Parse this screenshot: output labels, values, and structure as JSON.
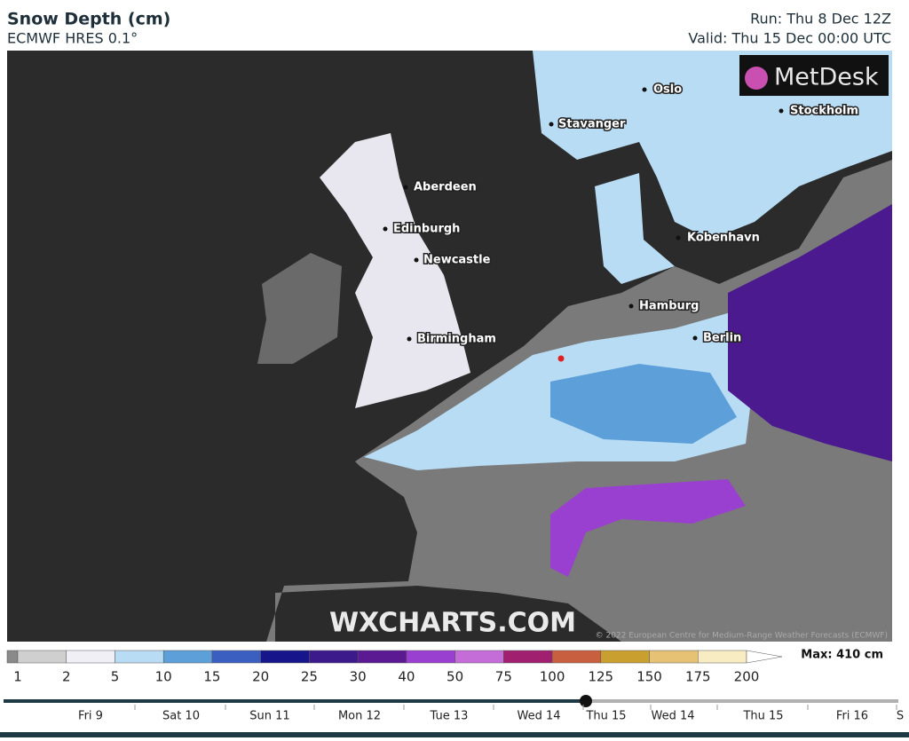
{
  "header": {
    "title": "Snow Depth (cm)",
    "subtitle": "ECMWF HRES 0.1°",
    "run": "Run: Thu 8 Dec 12Z",
    "valid": "Valid: Thu 15 Dec 00:00 UTC"
  },
  "map": {
    "logo": "MetDesk",
    "watermark": "WXCHARTS.COM",
    "copyright": "© 2022 European Centre for Medium-Range Weather Forecasts (ECMWF)",
    "cities": [
      "Oslo",
      "Stockholm",
      "Stavanger",
      "Aberdeen",
      "Edinburgh",
      "Newcastle",
      "Kobenhavn",
      "Hamburg",
      "Berlin",
      "Birmingham"
    ]
  },
  "legend": {
    "values": [
      1,
      2,
      5,
      10,
      15,
      20,
      25,
      30,
      40,
      50,
      75,
      100,
      125,
      150,
      175,
      200
    ],
    "colors": [
      "#8a8a8a",
      "#cfcfcf",
      "#f1eff6",
      "#b9dcf5",
      "#5d9fd8",
      "#3a5fc0",
      "#16168a",
      "#3c1a8c",
      "#5c1a92",
      "#9a40d0",
      "#c46cd8",
      "#a0206f",
      "#c8603f",
      "#c9a030",
      "#e6c274",
      "#f8ecc2",
      "#ffffff"
    ],
    "max": "Max: 410 cm"
  },
  "timeline": {
    "labels": [
      "Fri 9",
      "Sat 10",
      "Sun 11",
      "Mon 12",
      "Tue 13",
      "Wed 14",
      "Thu 15",
      "Wed 14",
      "Thu 15",
      "Fri 16",
      "S"
    ]
  }
}
